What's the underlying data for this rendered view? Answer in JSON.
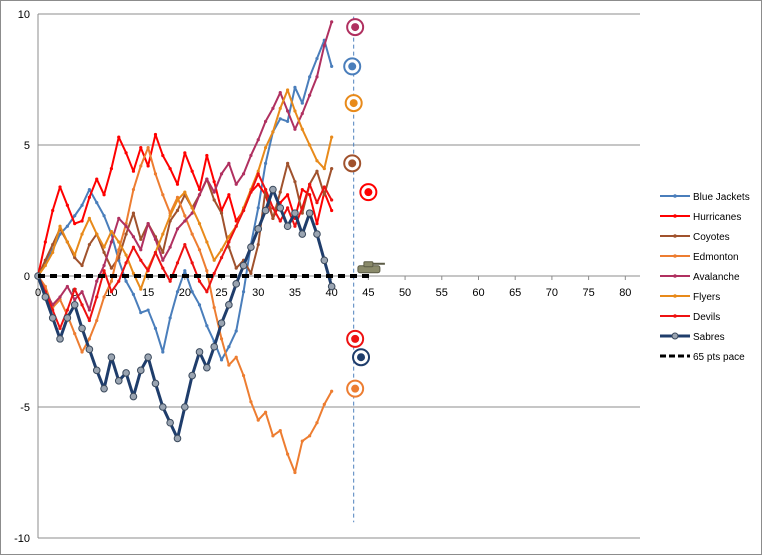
{
  "chart_data": {
    "type": "line",
    "title": "",
    "xlabel": "",
    "ylabel": "",
    "xlim": [
      0,
      82
    ],
    "ylim": [
      -10,
      10
    ],
    "x_ticks": [
      0,
      5,
      10,
      15,
      20,
      25,
      30,
      35,
      40,
      45,
      50,
      55,
      60,
      65,
      70,
      75,
      80
    ],
    "y_ticks": [
      10,
      5,
      0,
      -5,
      -10
    ],
    "x_tick_labels": [
      "0",
      "5",
      "10",
      "15",
      "20",
      "25",
      "30",
      "35",
      "40",
      "45",
      "50",
      "55",
      "60",
      "65",
      "70",
      "75",
      "80"
    ],
    "y_tick_labels": [
      "10",
      "5",
      "0",
      "-5",
      "-10"
    ],
    "grid": "horizontal",
    "legend_position": "right",
    "reference_line": {
      "type": "vertical",
      "x": 43,
      "style": "dashed",
      "color": "#4f81bd"
    },
    "series": [
      {
        "name": "Blue Jackets",
        "color": "#4a7ebb",
        "marker": "dot",
        "width": 2,
        "values": [
          0,
          0.5,
          1.0,
          1.6,
          1.9,
          2.3,
          2.7,
          3.3,
          2.8,
          2.3,
          1.6,
          0.6,
          -0.2,
          -0.7,
          -1.4,
          -1.3,
          -2.0,
          -2.9,
          -1.6,
          -0.6,
          0.2,
          -0.6,
          -1.1,
          -1.9,
          -2.5,
          -3.2,
          -2.7,
          -2.1,
          -0.6,
          1.2,
          2.6,
          4.3,
          5.5,
          6.0,
          5.9,
          7.2,
          6.6,
          7.6,
          8.3,
          9.0,
          8.0
        ]
      },
      {
        "name": "Hurricanes",
        "color": "#ff0000",
        "marker": "dot",
        "width": 2,
        "values": [
          0,
          1.3,
          2.5,
          3.4,
          2.7,
          2.0,
          2.1,
          3.0,
          3.7,
          3.1,
          4.1,
          5.3,
          4.7,
          4.0,
          4.9,
          4.2,
          5.4,
          4.6,
          4.1,
          3.5,
          4.7,
          4.0,
          3.3,
          4.6,
          3.6,
          2.5,
          3.1,
          2.1,
          2.5,
          3.2,
          3.5,
          3.1,
          2.2,
          2.8,
          3.1,
          2.2,
          3.3,
          3.1,
          2.0,
          3.2,
          2.5
        ]
      },
      {
        "name": "Coyotes",
        "color": "#a0522d",
        "marker": "dot",
        "width": 2,
        "values": [
          0,
          0.6,
          1.2,
          1.8,
          1.3,
          0.7,
          0.4,
          1.2,
          1.6,
          0.9,
          0.3,
          0.7,
          1.6,
          2.4,
          1.4,
          2.0,
          1.5,
          0.9,
          2.1,
          2.5,
          3.1,
          2.6,
          3.1,
          3.7,
          2.9,
          2.4,
          1.1,
          0.3,
          0.6,
          0.1,
          1.2,
          3.3,
          2.2,
          3.2,
          4.3,
          3.6,
          2.4,
          3.5,
          4.0,
          3.1,
          4.1
        ]
      },
      {
        "name": "Edmonton",
        "color": "#ed7d31",
        "marker": "dot",
        "width": 2,
        "values": [
          0,
          -0.4,
          -1.2,
          -0.9,
          -1.5,
          -2.2,
          -2.9,
          -2.4,
          -1.7,
          -0.8,
          -0.2,
          1.0,
          2.0,
          3.3,
          4.2,
          4.9,
          3.9,
          3.1,
          2.4,
          3.0,
          2.3,
          1.6,
          1.0,
          0.2,
          -1.2,
          -2.4,
          -3.4,
          -3.1,
          -3.8,
          -4.8,
          -5.5,
          -5.2,
          -6.1,
          -5.9,
          -6.8,
          -7.5,
          -6.3,
          -6.1,
          -5.6,
          -4.9,
          -4.4
        ]
      },
      {
        "name": "Avalanche",
        "color": "#b03060",
        "marker": "dot",
        "width": 2,
        "values": [
          0,
          -0.6,
          -1.1,
          -0.8,
          -0.4,
          -0.9,
          -0.6,
          -1.3,
          -0.2,
          0.4,
          1.3,
          2.2,
          1.9,
          1.5,
          1.0,
          2.0,
          1.4,
          0.6,
          1.1,
          1.8,
          2.1,
          2.4,
          3.1,
          3.7,
          3.2,
          3.9,
          4.3,
          3.5,
          3.9,
          4.6,
          5.2,
          5.9,
          6.4,
          7.0,
          6.3,
          5.6,
          6.2,
          6.9,
          7.6,
          8.8,
          9.7
        ]
      },
      {
        "name": "Flyers",
        "color": "#e88a1a",
        "marker": "dot",
        "width": 2,
        "values": [
          0,
          0.4,
          0.9,
          1.9,
          1.3,
          0.8,
          1.6,
          2.2,
          1.6,
          1.1,
          1.7,
          1.3,
          0.8,
          0.1,
          -0.5,
          0.3,
          0.9,
          1.6,
          2.3,
          2.9,
          3.2,
          2.6,
          2.0,
          1.3,
          0.6,
          1.0,
          1.5,
          1.9,
          2.6,
          3.3,
          4.0,
          4.9,
          5.5,
          6.4,
          7.1,
          6.3,
          5.6,
          5.0,
          4.4,
          4.1,
          5.3
        ]
      },
      {
        "name": "Devils",
        "color": "#ee1111",
        "marker": "dot",
        "width": 2,
        "values": [
          0,
          -0.6,
          -1.3,
          -2.0,
          -1.3,
          -0.5,
          -1.1,
          -1.7,
          -0.8,
          0.2,
          -0.6,
          -0.2,
          0.5,
          1.1,
          0.6,
          0.2,
          0.9,
          0.3,
          -0.2,
          0.5,
          1.2,
          0.5,
          -0.2,
          -0.6,
          0.1,
          0.7,
          1.3,
          1.9,
          2.5,
          3.2,
          3.9,
          3.3,
          2.6,
          2.1,
          2.6,
          1.9,
          2.6,
          3.5,
          2.8,
          3.4,
          2.9
        ]
      },
      {
        "name": "Sabres",
        "color": "#1f3d6b",
        "marker": "sphere",
        "width": 3,
        "values": [
          0,
          -0.8,
          -1.6,
          -2.4,
          -1.6,
          -1.1,
          -2.0,
          -2.8,
          -3.6,
          -4.3,
          -3.1,
          -4.0,
          -3.7,
          -4.6,
          -3.6,
          -3.1,
          -4.1,
          -5.0,
          -5.6,
          -6.2,
          -5.0,
          -3.8,
          -2.9,
          -3.5,
          -2.7,
          -1.8,
          -1.1,
          -0.3,
          0.4,
          1.1,
          1.8,
          2.5,
          3.3,
          2.6,
          1.9,
          2.4,
          1.6,
          2.4,
          1.6,
          0.6,
          -0.4
        ]
      },
      {
        "name": "65 pts pace",
        "color": "#000000",
        "marker": "none",
        "width": 4,
        "dashed": true,
        "values": [
          0,
          0
        ]
      }
    ],
    "team_logos": [
      {
        "team": "Avalanche",
        "x": 43.2,
        "y": 9.5
      },
      {
        "team": "Blue Jackets",
        "x": 42.8,
        "y": 8.0
      },
      {
        "team": "Flyers",
        "x": 43.0,
        "y": 6.6
      },
      {
        "team": "Coyotes",
        "x": 42.8,
        "y": 4.3
      },
      {
        "team": "Hurricanes",
        "x": 45.0,
        "y": 3.2
      },
      {
        "team": "65 pts pace",
        "x": 44.8,
        "y": 0.2
      },
      {
        "team": "Devils",
        "x": 43.2,
        "y": -2.4
      },
      {
        "team": "Sabres",
        "x": 44.0,
        "y": -3.1
      },
      {
        "team": "Edmonton",
        "x": 43.2,
        "y": -4.3
      }
    ]
  }
}
